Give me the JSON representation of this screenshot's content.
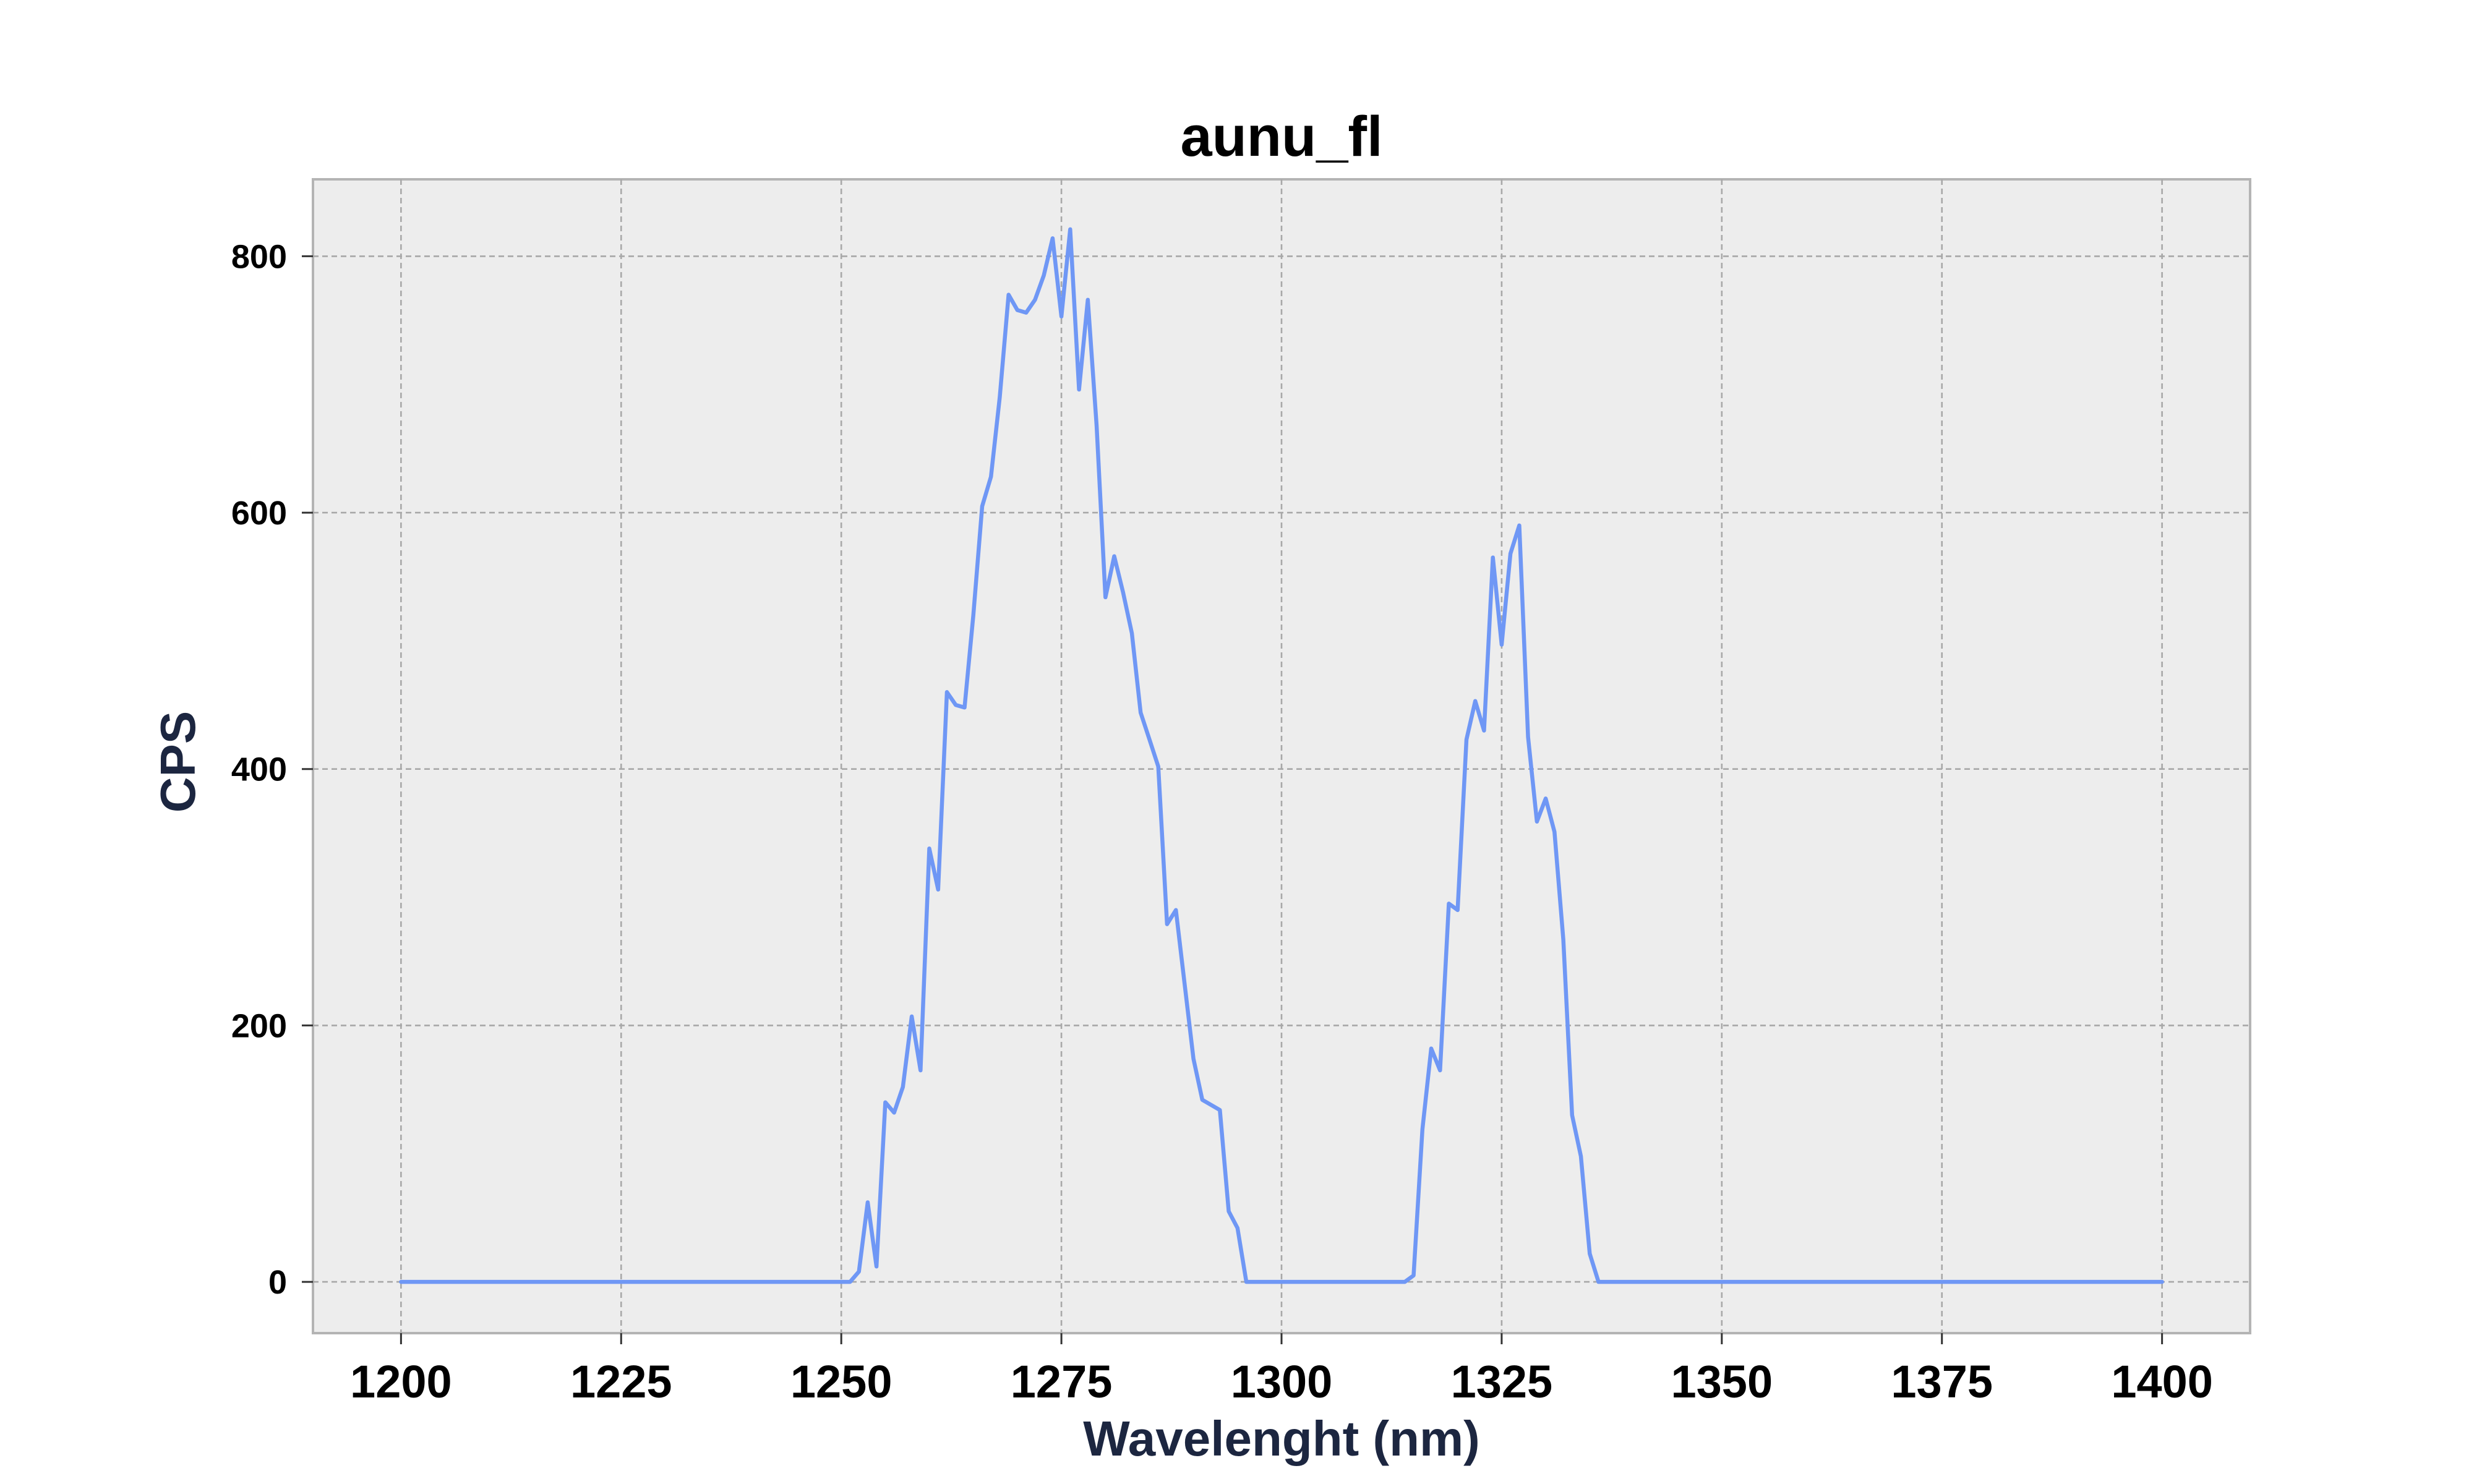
{
  "chart_data": {
    "type": "line",
    "title": "aunu_fl",
    "xlabel": "Wavelenght (nm)",
    "ylabel": "CPS",
    "xlim": [
      1190,
      1410
    ],
    "ylim": [
      -40,
      860
    ],
    "xticks": [
      1200,
      1225,
      1250,
      1275,
      1300,
      1325,
      1350,
      1375,
      1400
    ],
    "xtick_labels": [
      "1200",
      "1225",
      "1250",
      "1275",
      "1300",
      "1325",
      "1350",
      "1375",
      "1400"
    ],
    "yticks": [
      0,
      200,
      400,
      600,
      800
    ],
    "ytick_labels": [
      "0",
      "200",
      "400",
      "600",
      "800"
    ],
    "grid": true,
    "colors": {
      "line": "#6f97f5",
      "plot_background": "#ededed",
      "plot_border": "#b4b4b4",
      "grid": "#a8a8a8"
    },
    "series": [
      {
        "x": [
          1200,
          1251,
          1252,
          1253,
          1254,
          1255,
          1256,
          1257,
          1258,
          1259,
          1260,
          1261,
          1262,
          1263,
          1264,
          1265,
          1266,
          1267,
          1268,
          1269,
          1270,
          1271,
          1272,
          1273,
          1274,
          1275,
          1276,
          1277,
          1278,
          1279,
          1280,
          1281,
          1282,
          1283,
          1284,
          1285,
          1286,
          1287,
          1288,
          1289,
          1290,
          1291,
          1292,
          1293,
          1294,
          1295,
          1296,
          1314,
          1315,
          1316,
          1317,
          1318,
          1319,
          1320,
          1321,
          1322,
          1323,
          1324,
          1325,
          1326,
          1327,
          1328,
          1329,
          1330,
          1331,
          1332,
          1333,
          1334,
          1335,
          1336,
          1400
        ],
        "y": [
          0,
          0,
          8,
          62,
          12,
          140,
          132,
          152,
          207,
          165,
          338,
          306,
          460,
          450,
          448,
          520,
          605,
          628,
          690,
          770,
          758,
          756,
          766,
          785,
          814,
          753,
          821,
          696,
          766,
          668,
          534,
          566,
          538,
          506,
          444,
          423,
          402,
          279,
          290,
          232,
          174,
          142,
          138,
          134,
          55,
          42,
          0,
          0,
          5,
          119,
          182,
          165,
          295,
          290,
          423,
          453,
          430,
          565,
          497,
          568,
          590,
          425,
          359,
          377,
          351,
          267,
          130,
          98,
          22,
          0,
          0
        ]
      }
    ]
  }
}
